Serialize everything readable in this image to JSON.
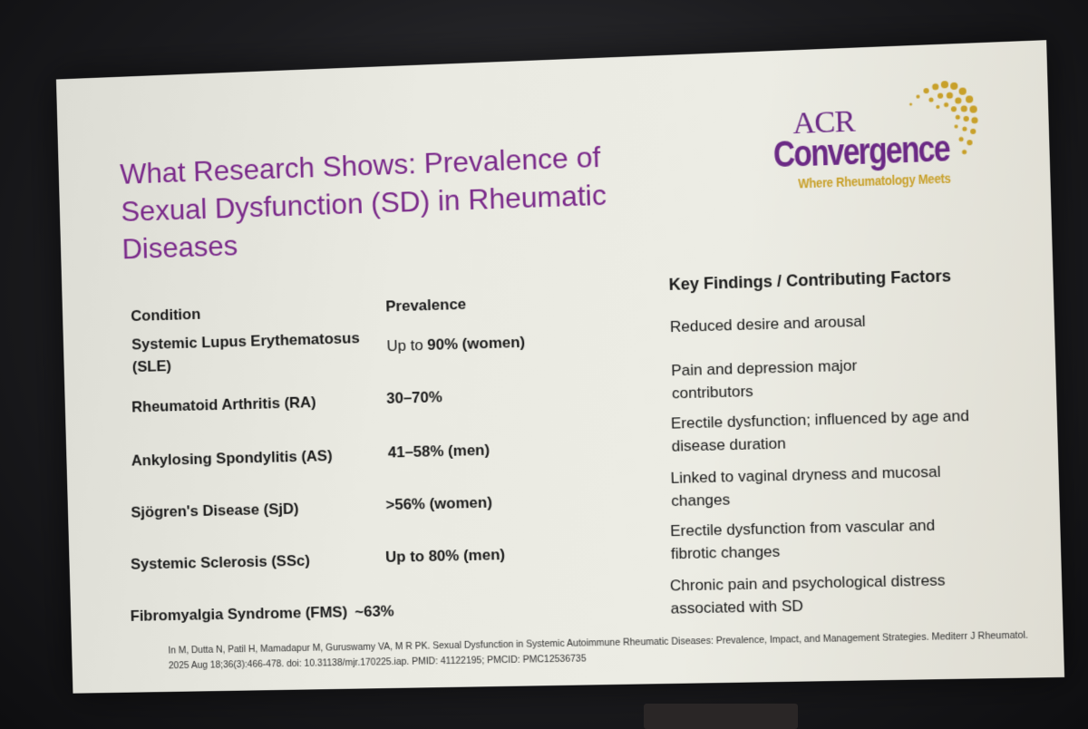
{
  "slide": {
    "title": "What Research Shows: Prevalence of Sexual Dysfunction (SD) in Rheumatic Diseases",
    "logo": {
      "acr": "ACR",
      "convergence": "Convergence",
      "tagline": "Where Rheumatology Meets",
      "colors": {
        "purple": "#6b2a85",
        "gold": "#c8a02a"
      }
    },
    "table": {
      "headers": [
        "Condition",
        "Prevalence",
        "Key Findings / Contributing Factors"
      ],
      "rows": [
        {
          "condition": "Systemic Lupus Erythematosus (SLE)",
          "prevalence_pre": "Up to ",
          "prevalence_bold": "90%",
          "prevalence_post": " (women)",
          "findings": "Reduced desire and arousal"
        },
        {
          "condition": "Rheumatoid Arthritis (RA)",
          "prevalence_pre": "",
          "prevalence_bold": "30–70%",
          "prevalence_post": "",
          "findings": "Pain and depression major contributors"
        },
        {
          "condition": "Ankylosing Spondylitis (AS)",
          "prevalence_pre": "",
          "prevalence_bold": "41–58%",
          "prevalence_post": " (men)",
          "findings": "Erectile dysfunction; influenced by age and disease duration"
        },
        {
          "condition": "Sjögren's Disease (SjD)",
          "prevalence_pre": "",
          "prevalence_bold": ">56%",
          "prevalence_post": " (women)",
          "findings": "Linked to vaginal dryness and mucosal changes"
        },
        {
          "condition": "Systemic Sclerosis (SSc)",
          "prevalence_pre": "",
          "prevalence_bold": "Up to 80%",
          "prevalence_post": " (men)",
          "findings": "Erectile dysfunction from vascular and fibrotic changes"
        },
        {
          "condition": "Fibromyalgia Syndrome (FMS)",
          "prevalence_pre": "",
          "prevalence_bold": "~63%",
          "prevalence_post": "",
          "findings": "Chronic pain and psychological distress associated with SD"
        }
      ]
    },
    "reference": "In M, Dutta N, Patil H, Mamadapur M, Guruswamy VA, M R PK. Sexual Dysfunction in Systemic Autoimmune Rheumatic Diseases: Prevalence, Impact, and Management Strategies. Mediterr J Rheumatol. 2025 Aug 18;36(3):466-478. doi: 10.31138/mjr.170225.iap. PMID: 41122195; PMCID: PMC12536735",
    "title_color": "#7a2a8a"
  }
}
